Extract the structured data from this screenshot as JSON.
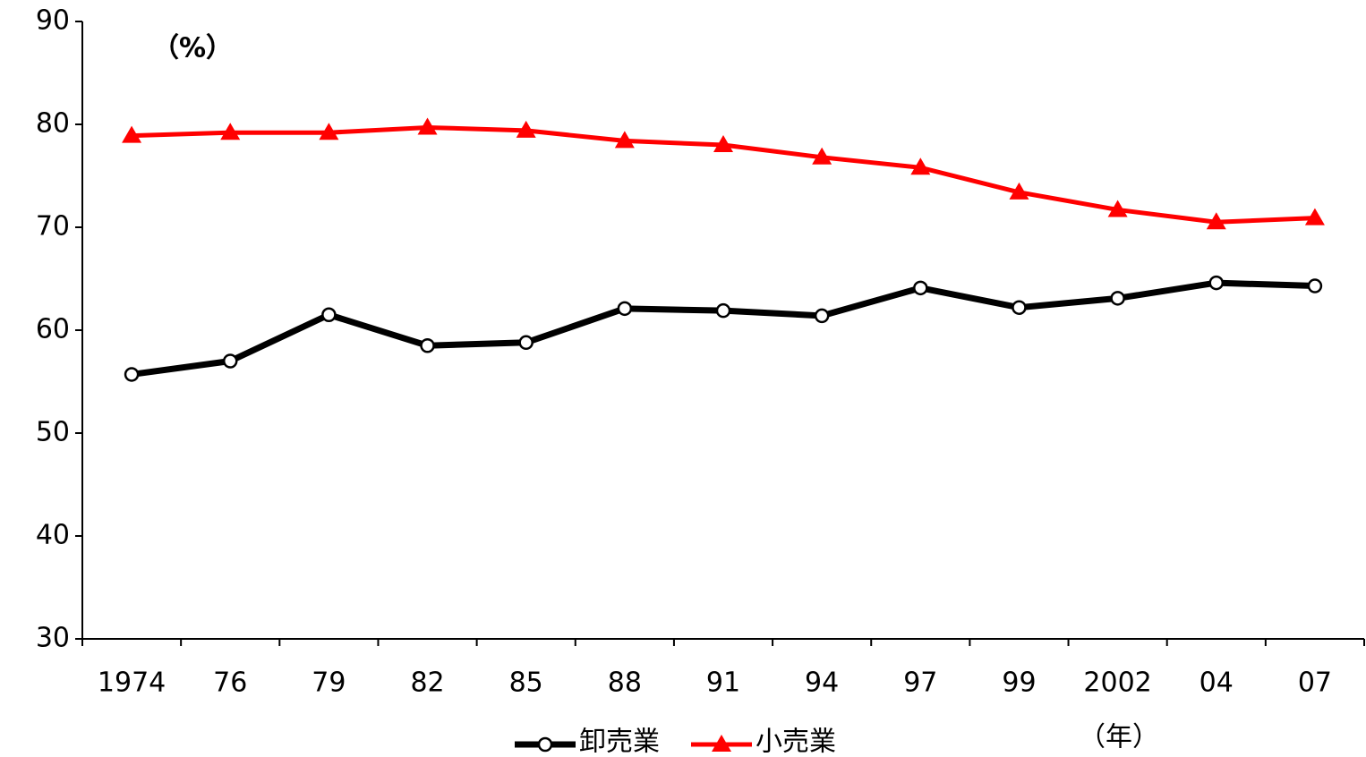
{
  "chart_data": {
    "type": "line",
    "y_label": "（%）",
    "x_label": "（年）",
    "categories": [
      "1974",
      "76",
      "79",
      "82",
      "85",
      "88",
      "91",
      "94",
      "97",
      "99",
      "2002",
      "04",
      "07"
    ],
    "series": [
      {
        "name": "卸売業",
        "color": "#000000",
        "marker": "circle",
        "values": [
          55.7,
          57.0,
          61.5,
          58.5,
          58.8,
          62.1,
          61.9,
          61.4,
          64.1,
          62.2,
          63.1,
          64.6,
          64.3
        ]
      },
      {
        "name": "小売業",
        "color": "#ff0000",
        "marker": "triangle",
        "values": [
          78.9,
          79.2,
          79.2,
          79.7,
          79.4,
          78.4,
          78.0,
          76.8,
          75.8,
          73.4,
          71.7,
          70.5,
          70.9
        ]
      }
    ],
    "ylim": [
      30,
      90
    ],
    "yticks": [
      30,
      40,
      50,
      60,
      70,
      80,
      90
    ],
    "grid": false,
    "legend": "bottom"
  }
}
